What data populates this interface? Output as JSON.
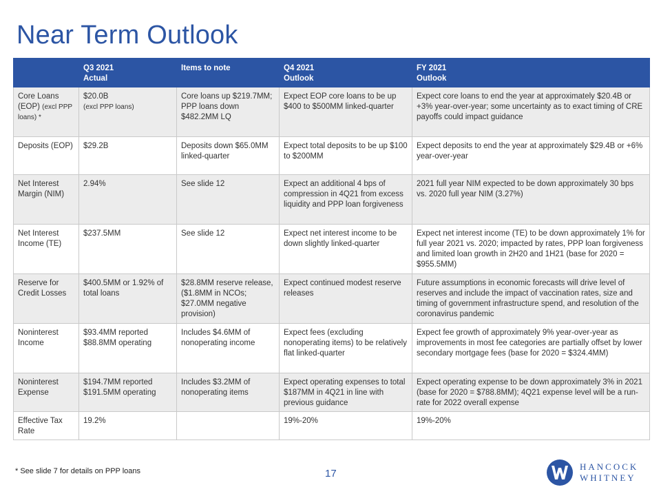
{
  "title": "Near Term Outlook",
  "table": {
    "headers": [
      {
        "line1": "",
        "line2": ""
      },
      {
        "line1": "Q3 2021",
        "line2": "Actual"
      },
      {
        "line1": "Items to note",
        "line2": ""
      },
      {
        "line1": "Q4 2021",
        "line2": "Outlook"
      },
      {
        "line1": "FY 2021",
        "line2": "Outlook"
      }
    ],
    "rows": [
      {
        "label": "Core Loans (EOP)",
        "label_small": "(excl PPP loans) *",
        "q3": "$20.0B",
        "q3_small": "(excl PPP loans)",
        "items": "Core loans up $219.7MM; PPP loans down $482.2MM LQ",
        "q4": "Expect EOP core loans to be up $400 to $500MM linked-quarter",
        "fy": "Expect core loans to end the year at approximately $20.4B or +3% year-over-year;  some uncertainty as to exact timing of CRE payoffs could impact guidance"
      },
      {
        "label": "Deposits (EOP)",
        "label_small": "",
        "q3": "$29.2B",
        "q3_small": "",
        "items": "Deposits down $65.0MM linked-quarter",
        "q4": "Expect total deposits to be up $100 to $200MM",
        "fy": "Expect deposits to end the year at approximately $29.4B or +6% year-over-year"
      },
      {
        "label": "Net Interest Margin (NIM)",
        "label_small": "",
        "q3": "2.94%",
        "q3_small": "",
        "items": "See slide 12",
        "q4": "Expect an additional 4 bps of compression in 4Q21 from excess liquidity and PPP loan forgiveness",
        "fy": "2021 full year NIM expected to be down approximately 30 bps vs. 2020 full year NIM (3.27%)"
      },
      {
        "label": "Net Interest Income (TE)",
        "label_small": "",
        "q3": "$237.5MM",
        "q3_small": "",
        "items": "See slide 12",
        "q4": "Expect net interest income to be down slightly linked-quarter",
        "fy": "Expect net interest income (TE) to be down approximately 1% for full year 2021 vs. 2020; impacted by rates, PPP loan forgiveness and limited loan growth in 2H20 and 1H21 (base for 2020 = $955.5MM)"
      },
      {
        "label": "Reserve for Credit Losses",
        "label_small": "",
        "q3": "$400.5MM or 1.92% of total loans",
        "q3_small": "",
        "items": "$28.8MM reserve release, ($1.8MM in NCOs; $27.0MM negative provision)",
        "q4": "Expect continued modest reserve releases",
        "fy": "Future assumptions in economic forecasts will drive level of reserves and include the impact of vaccination rates, size and timing of government infrastructure spend, and resolution of the coronavirus pandemic"
      },
      {
        "label": "Noninterest Income",
        "label_small": "",
        "q3": "$93.4MM reported $88.8MM operating",
        "q3_small": "",
        "items": "Includes $4.6MM of nonoperating income",
        "q4": "Expect fees (excluding nonoperating items) to be relatively flat linked-quarter",
        "fy": "Expect fee growth of approximately 9% year-over-year as improvements in most fee categories are partially offset by lower secondary mortgage fees (base for 2020 = $324.4MM)"
      },
      {
        "label": "Noninterest Expense",
        "label_small": "",
        "q3": "$194.7MM reported $191.5MM operating",
        "q3_small": "",
        "items": "Includes $3.2MM of nonoperating items",
        "q4": "Expect operating expenses to total $187MM in 4Q21 in line with previous guidance",
        "fy": "Expect operating expense to be down approximately 3% in 2021 (base for 2020 = $788.8MM); 4Q21 expense level will be a run-rate for 2022 overall expense"
      },
      {
        "label": "Effective Tax Rate",
        "label_small": "",
        "q3": "19.2%",
        "q3_small": "",
        "items": "",
        "q4": "19%-20%",
        "fy": "19%-20%"
      }
    ]
  },
  "footnote": "* See slide 7 for details on PPP loans",
  "page_number": "17",
  "logo": {
    "line1": "HANCOCK",
    "line2": "WHITNEY",
    "icon": "hancock-whitney-logo-icon"
  },
  "colors": {
    "accent": "#2c55a4",
    "row_shade": "#ececec"
  }
}
